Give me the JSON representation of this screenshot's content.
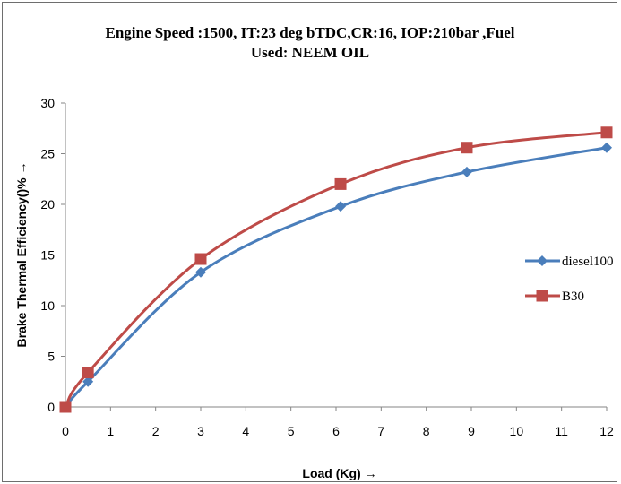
{
  "chart_data": {
    "type": "line",
    "title_line1": "Engine Speed :1500, IT:23 deg bTDC,CR:16, IOP:210bar ,Fuel",
    "title_line2": "Used: NEEM OIL",
    "xlabel": "Load (Kg) →",
    "ylabel": "Brake  Thermal Efficiency()% →",
    "xlim": [
      0,
      12
    ],
    "ylim": [
      0,
      30
    ],
    "xticks": [
      "0",
      "1",
      "2",
      "3",
      "4",
      "5",
      "6",
      "7",
      "8",
      "9",
      "10",
      "11",
      "12"
    ],
    "yticks": [
      "0",
      "5",
      "10",
      "15",
      "20",
      "25",
      "30"
    ],
    "grid": false,
    "legend_position": "right",
    "series": [
      {
        "name": "diesel100",
        "color": "#4a7ebb",
        "marker": "diamond",
        "x": [
          0,
          0.5,
          3,
          6.1,
          8.9,
          12
        ],
        "y": [
          0,
          2.5,
          13.3,
          19.8,
          23.2,
          25.6
        ]
      },
      {
        "name": "B30",
        "color": "#be4b48",
        "marker": "square",
        "x": [
          0,
          0.5,
          3,
          6.1,
          8.9,
          12
        ],
        "y": [
          0,
          3.4,
          14.6,
          22.0,
          25.6,
          27.1
        ]
      }
    ]
  }
}
